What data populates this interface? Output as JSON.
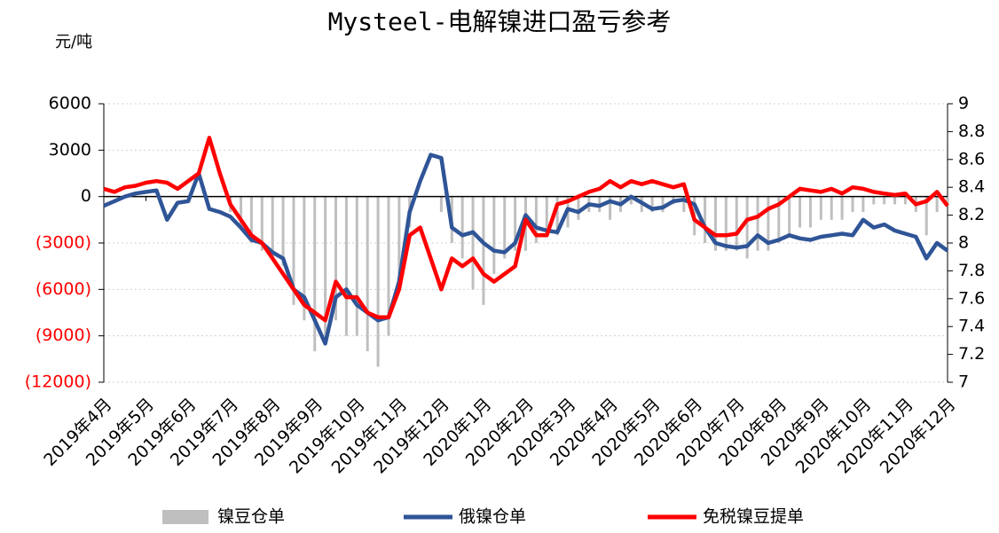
{
  "chart_data": {
    "type": "line",
    "title": "Mysteel-电解镍进口盈亏参考",
    "y_label": "元/吨",
    "categories": [
      "2019年4月",
      null,
      null,
      null,
      "2019年5月",
      null,
      null,
      null,
      "2019年6月",
      null,
      null,
      null,
      "2019年7月",
      null,
      null,
      null,
      "2019年8月",
      null,
      null,
      null,
      "2019年9月",
      null,
      null,
      null,
      "2019年10月",
      null,
      null,
      null,
      "2019年11月",
      null,
      null,
      null,
      "2019年12月",
      null,
      null,
      null,
      "2020年1月",
      null,
      null,
      null,
      "2020年2月",
      null,
      null,
      null,
      "2020年3月",
      null,
      null,
      null,
      "2020年4月",
      null,
      null,
      null,
      "2020年5月",
      null,
      null,
      null,
      "2020年6月",
      null,
      null,
      null,
      "2020年7月",
      null,
      null,
      null,
      "2020年8月",
      null,
      null,
      null,
      "2020年9月",
      null,
      null,
      null,
      "2020年10月",
      null,
      null,
      null,
      "2020年11月",
      null,
      null,
      null,
      "2020年12月"
    ],
    "series": [
      {
        "name": "镍豆仓单",
        "kind": "bar",
        "color": "#bfbfbf",
        "values": [
          0,
          0,
          0,
          0,
          0,
          0,
          0,
          0,
          0,
          0,
          0,
          0,
          -1000,
          -2000,
          -3000,
          -3500,
          -4000,
          -4500,
          -7000,
          -8000,
          -10000,
          -9000,
          -8000,
          -9000,
          -9000,
          -10000,
          -11000,
          -9000,
          -5000,
          -2000,
          0,
          0,
          -1000,
          -3000,
          -4000,
          -6000,
          -7000,
          -5000,
          -4000,
          -3500,
          -3500,
          -3000,
          -2500,
          -2500,
          -2000,
          -1500,
          -1000,
          -1000,
          -1500,
          -1000,
          -500,
          -1000,
          -1000,
          -1000,
          -500,
          -1000,
          -2500,
          -3000,
          -3500,
          -3500,
          -3500,
          -4000,
          -3500,
          -3500,
          -3000,
          -2500,
          -2000,
          -2000,
          -1500,
          -1500,
          -1500,
          -1000,
          -1000,
          -500,
          -500,
          -500,
          -500,
          -1000,
          -2500,
          -1000,
          -500
        ]
      },
      {
        "name": "俄镍仓单",
        "kind": "line",
        "color": "#2f5597",
        "values": [
          -600,
          -300,
          0,
          200,
          300,
          400,
          -1500,
          -400,
          -300,
          1500,
          -800,
          -1000,
          -1300,
          -2000,
          -2800,
          -3000,
          -3600,
          -4000,
          -6000,
          -6500,
          -8000,
          -9500,
          -6500,
          -6000,
          -7000,
          -7500,
          -8000,
          -7800,
          -5500,
          -1000,
          1000,
          2700,
          2500,
          -2000,
          -2500,
          -2300,
          -3000,
          -3500,
          -3600,
          -3000,
          -1200,
          -2000,
          -2200,
          -2300,
          -800,
          -1000,
          -500,
          -600,
          -300,
          -500,
          0,
          -400,
          -800,
          -700,
          -300,
          -200,
          -500,
          -2000,
          -3000,
          -3200,
          -3300,
          -3200,
          -2500,
          -3000,
          -2800,
          -2500,
          -2700,
          -2800,
          -2600,
          -2500,
          -2400,
          -2500,
          -1500,
          -2000,
          -1800,
          -2200,
          -2400,
          -2600,
          -4000,
          -3000,
          -3500
        ]
      },
      {
        "name": "免税镍豆提单",
        "kind": "line",
        "color": "#ff0000",
        "values": [
          500,
          300,
          600,
          700,
          900,
          1000,
          900,
          500,
          1000,
          1500,
          3800,
          1500,
          -500,
          -1500,
          -2500,
          -3000,
          -4000,
          -5000,
          -6000,
          -7000,
          -7500,
          -8000,
          -5500,
          -6500,
          -6500,
          -7500,
          -7800,
          -7800,
          -6000,
          -2500,
          -2000,
          -4000,
          -6000,
          -4000,
          -4500,
          -4000,
          -5000,
          -5500,
          -5000,
          -4500,
          -1500,
          -2500,
          -2500,
          -500,
          -300,
          0,
          300,
          500,
          1000,
          600,
          1000,
          800,
          1000,
          800,
          600,
          800,
          -1500,
          -2000,
          -2500,
          -2500,
          -2400,
          -1500,
          -1300,
          -800,
          -500,
          0,
          500,
          400,
          300,
          500,
          200,
          600,
          500,
          300,
          200,
          100,
          200,
          -500,
          -300,
          300,
          -600
        ]
      }
    ],
    "ylim": [
      -12000,
      6000
    ],
    "yticks": [
      {
        "value": -12000,
        "label": "(12000)"
      },
      {
        "value": -9000,
        "label": "(9000)"
      },
      {
        "value": -6000,
        "label": "(6000)"
      },
      {
        "value": -3000,
        "label": "(3000)"
      },
      0,
      3000,
      6000
    ],
    "negative_tick_color": "#ff0000",
    "y2lim": [
      7,
      9
    ],
    "y2ticks": [
      7,
      7.2,
      7.4,
      7.6,
      7.8,
      8,
      8.2,
      8.4,
      8.6,
      8.8,
      9
    ],
    "grid": true
  }
}
